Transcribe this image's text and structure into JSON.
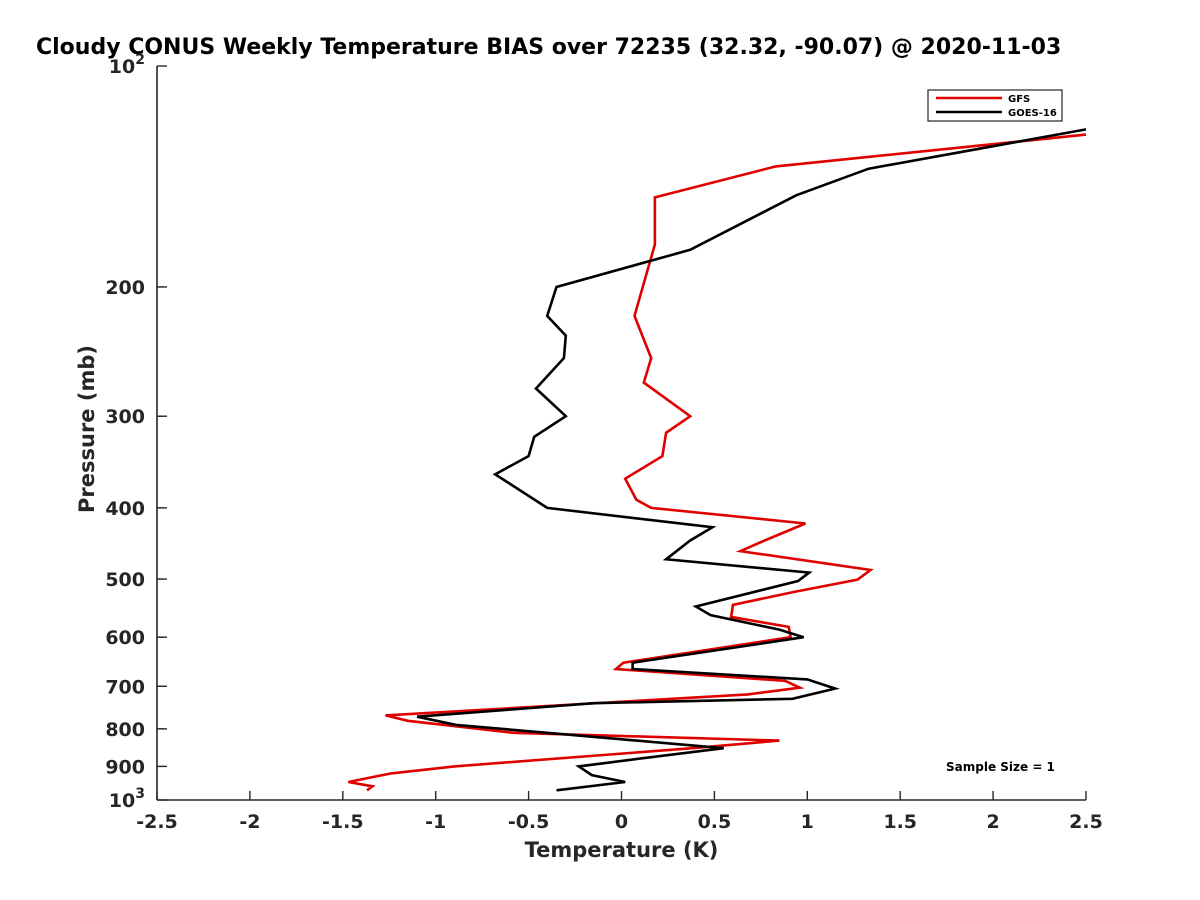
{
  "chart_data": {
    "type": "line",
    "title": "Cloudy CONUS Weekly Temperature BIAS over 72235 (32.32, -90.07) @ 2020-11-03",
    "xlabel": "Temperature (K)",
    "ylabel": "Pressure (mb)",
    "xlim": [
      -2.5,
      2.5
    ],
    "ylim": [
      100,
      1000
    ],
    "y_scale": "log",
    "y_reversed": true,
    "grid": false,
    "legend_position": "top-right",
    "x_ticks": [
      "-2.5",
      "-2",
      "-1.5",
      "-1",
      "-0.5",
      "0",
      "0.5",
      "1",
      "1.5",
      "2",
      "2.5"
    ],
    "y_ticks": [
      {
        "value": 100,
        "label": "10",
        "sup": "2"
      },
      {
        "value": 200,
        "label": "200"
      },
      {
        "value": 300,
        "label": "300"
      },
      {
        "value": 400,
        "label": "400"
      },
      {
        "value": 500,
        "label": "500"
      },
      {
        "value": 600,
        "label": "600"
      },
      {
        "value": 700,
        "label": "700"
      },
      {
        "value": 800,
        "label": "800"
      },
      {
        "value": 900,
        "label": "900"
      },
      {
        "value": 1000,
        "label": "10",
        "sup": "3"
      }
    ],
    "annotation": "Sample Size = 1",
    "series": [
      {
        "name": "GFS",
        "color": "#e00000",
        "points": [
          [
            2.5,
            124
          ],
          [
            0.83,
            137
          ],
          [
            0.18,
            151
          ],
          [
            0.18,
            175
          ],
          [
            0.07,
            219
          ],
          [
            0.16,
            250
          ],
          [
            0.12,
            270
          ],
          [
            0.37,
            300
          ],
          [
            0.24,
            316
          ],
          [
            0.22,
            340
          ],
          [
            0.02,
            365
          ],
          [
            0.08,
            390
          ],
          [
            0.16,
            400
          ],
          [
            0.99,
            420
          ],
          [
            0.77,
            443
          ],
          [
            0.64,
            458
          ],
          [
            1.34,
            486
          ],
          [
            1.27,
            501
          ],
          [
            0.94,
            520
          ],
          [
            0.6,
            542
          ],
          [
            0.59,
            563
          ],
          [
            0.9,
            581
          ],
          [
            0.91,
            600
          ],
          [
            0.01,
            650
          ],
          [
            -0.03,
            663
          ],
          [
            0.88,
            688
          ],
          [
            0.96,
            703
          ],
          [
            0.68,
            718
          ],
          [
            -1.27,
            767
          ],
          [
            -1.15,
            780
          ],
          [
            -0.58,
            810
          ],
          [
            0.85,
            830
          ],
          [
            0.38,
            850
          ],
          [
            -0.9,
            900
          ],
          [
            -1.24,
            920
          ],
          [
            -1.47,
            945
          ],
          [
            -1.34,
            958
          ],
          [
            -1.37,
            970
          ]
        ]
      },
      {
        "name": "GOES-16",
        "color": "#000000",
        "points": [
          [
            2.5,
            122
          ],
          [
            1.33,
            138
          ],
          [
            0.94,
            150
          ],
          [
            0.37,
            178
          ],
          [
            -0.35,
            200
          ],
          [
            -0.4,
            219
          ],
          [
            -0.3,
            233
          ],
          [
            -0.31,
            250
          ],
          [
            -0.46,
            275
          ],
          [
            -0.3,
            300
          ],
          [
            -0.47,
            320
          ],
          [
            -0.5,
            340
          ],
          [
            -0.68,
            360
          ],
          [
            -0.4,
            400
          ],
          [
            0.49,
            425
          ],
          [
            0.37,
            443
          ],
          [
            0.24,
            470
          ],
          [
            1.01,
            490
          ],
          [
            0.95,
            503
          ],
          [
            0.4,
            545
          ],
          [
            0.48,
            560
          ],
          [
            0.85,
            586
          ],
          [
            0.98,
            600
          ],
          [
            0.06,
            650
          ],
          [
            0.06,
            663
          ],
          [
            1.0,
            685
          ],
          [
            1.15,
            705
          ],
          [
            0.92,
            728
          ],
          [
            -0.15,
            738
          ],
          [
            -1.1,
            770
          ],
          [
            -0.89,
            790
          ],
          [
            -0.4,
            810
          ],
          [
            0.55,
            850
          ],
          [
            0.07,
            880
          ],
          [
            -0.23,
            900
          ],
          [
            -0.16,
            925
          ],
          [
            0.02,
            945
          ],
          [
            -0.35,
            970
          ]
        ]
      }
    ]
  }
}
